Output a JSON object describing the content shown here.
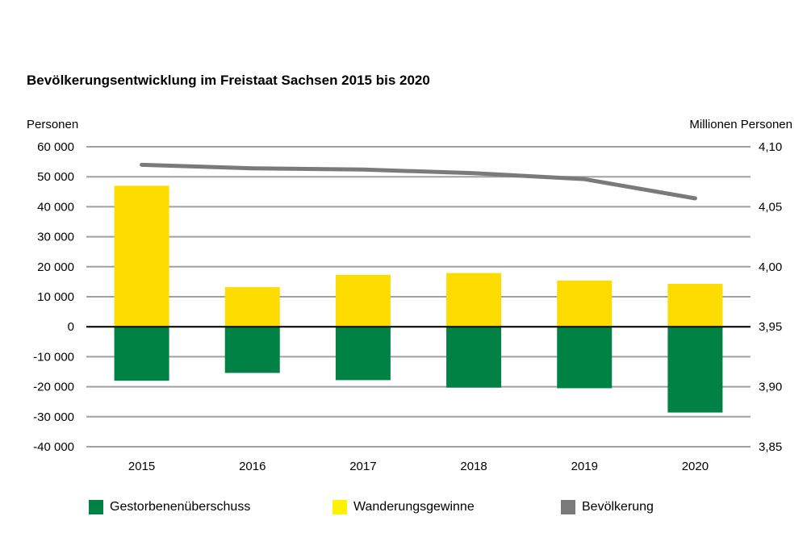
{
  "chart_data": {
    "type": "bar",
    "title": "Bevölkerungsentwicklung im Freistaat Sachsen 2015 bis 2020",
    "ylabel": "Personen",
    "y2label": "Millionen Personen",
    "categories": [
      "2015",
      "2016",
      "2017",
      "2018",
      "2019",
      "2020"
    ],
    "ylim": [
      -40000,
      60000
    ],
    "y_ticks": [
      "60 000",
      "50 000",
      "40 000",
      "30 000",
      "20 000",
      "10 000",
      "0",
      "-10 000",
      "-20 000",
      "-30 000",
      "-40 000"
    ],
    "y2lim": [
      3.85,
      4.1
    ],
    "y2_ticks": [
      "4,10",
      "4,05",
      "4,00",
      "3,95",
      "3,90",
      "3,85"
    ],
    "grid": true,
    "legend_position": "bottom",
    "series": [
      {
        "name": "Gestorbenenüberschuss",
        "type": "bar",
        "axis": "left",
        "color": "#008244",
        "values": [
          -18000,
          -15400,
          -17800,
          -20300,
          -20500,
          -28600
        ]
      },
      {
        "name": "Wanderungsgewinne",
        "type": "bar",
        "axis": "left",
        "color": "#FFDC00",
        "values": [
          47000,
          13200,
          17300,
          17900,
          15400,
          14300
        ]
      },
      {
        "name": "Bevölkerung",
        "type": "line",
        "axis": "right",
        "color": "#7a7a7a",
        "values": [
          4.085,
          4.082,
          4.081,
          4.078,
          4.073,
          4.057
        ]
      }
    ]
  }
}
